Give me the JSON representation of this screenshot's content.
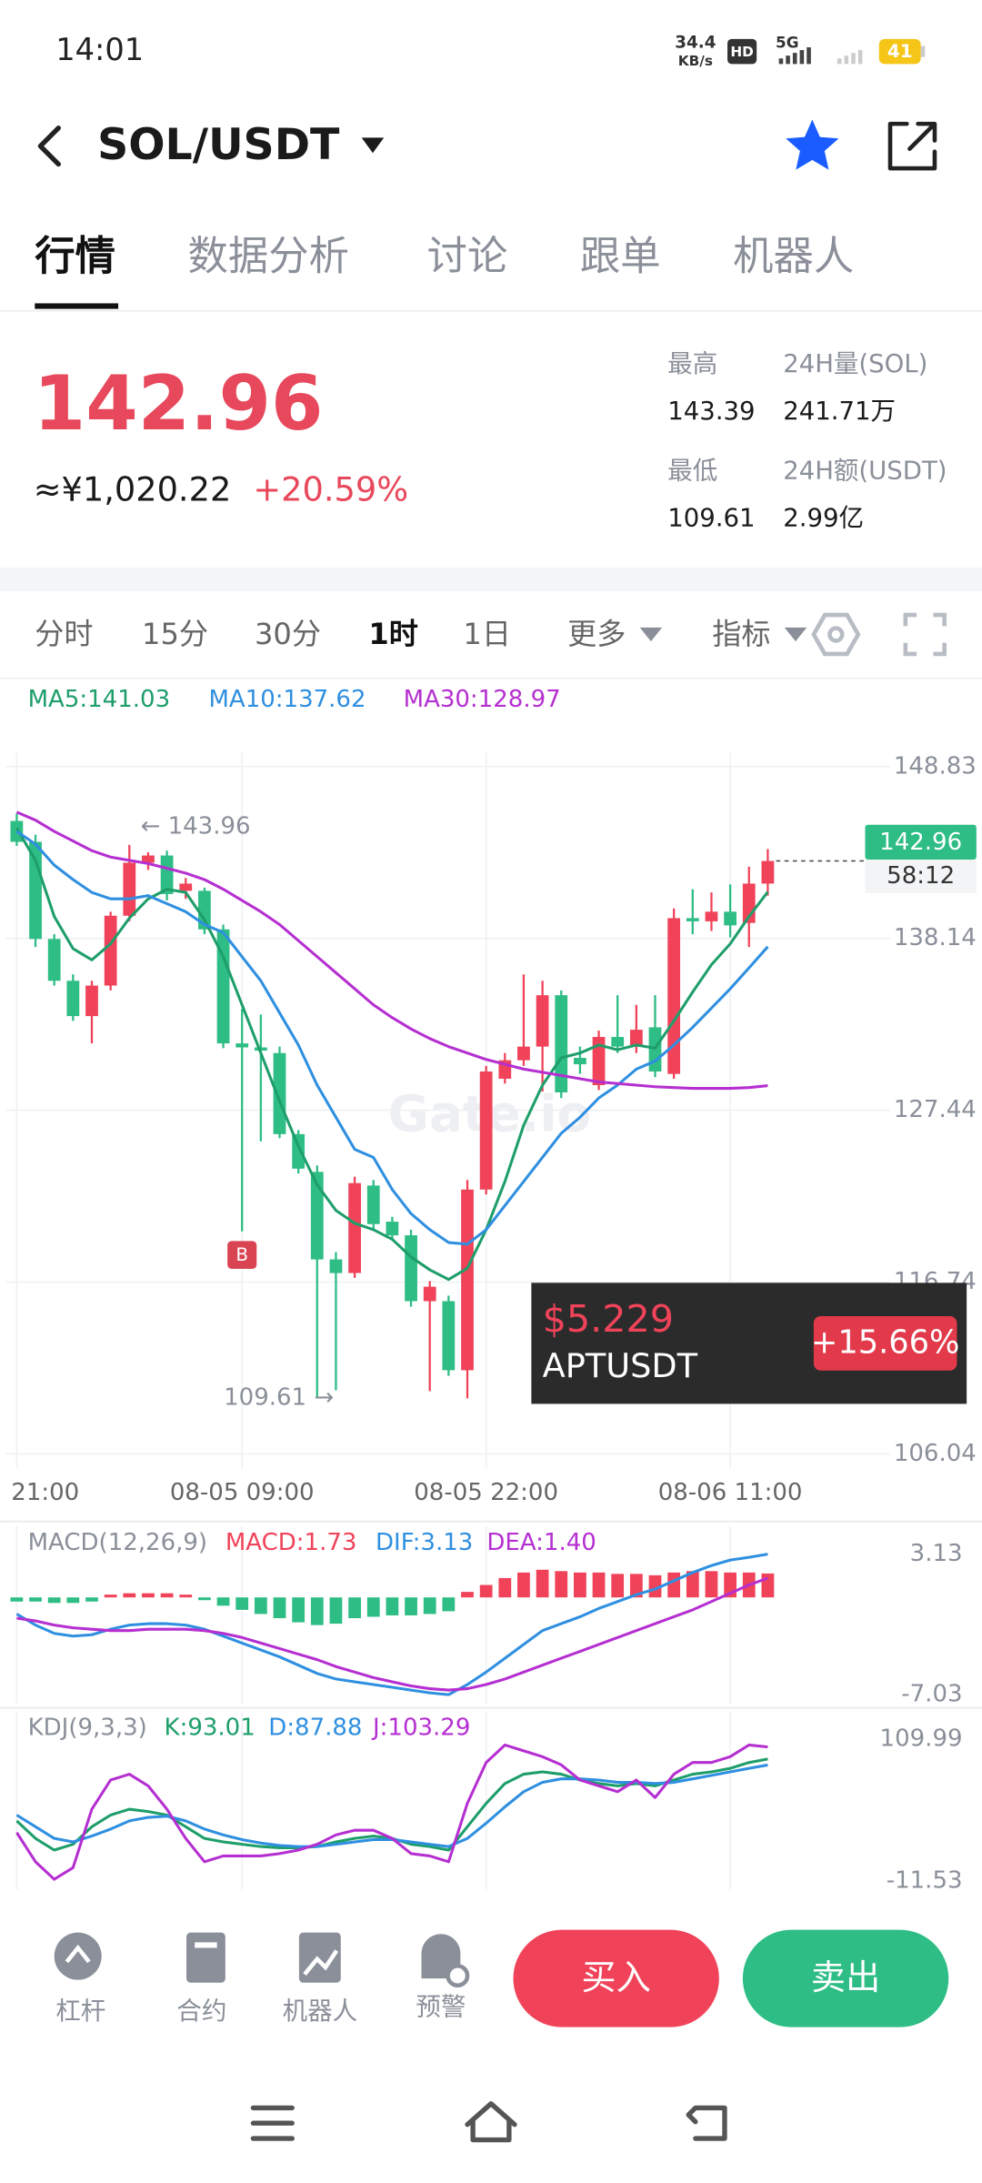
{
  "status_bar": {
    "time": "14:01",
    "net_speed": "34.4",
    "net_unit": "KB/s",
    "hd": "HD",
    "signal": "5G",
    "battery": "41"
  },
  "header": {
    "pair": "SOL/USDT"
  },
  "tabs": [
    "行情",
    "数据分析",
    "讨论",
    "跟单",
    "机器人"
  ],
  "ticker": {
    "price": "142.96",
    "cny": "≈¥1,020.22",
    "change": "+20.59%",
    "stats": [
      {
        "label": "最高",
        "value": "143.39"
      },
      {
        "label": "24H量(SOL)",
        "value": "241.71万"
      },
      {
        "label": "最低",
        "value": "109.61"
      },
      {
        "label": "24H额(USDT)",
        "value": "2.99亿"
      }
    ]
  },
  "intervals": [
    "分时",
    "15分",
    "30分",
    "1时",
    "1日",
    "更多",
    "指标"
  ],
  "chart_data": [
    {
      "type": "candlestick",
      "categories": [
        "21:00",
        null,
        null,
        null,
        null,
        null,
        null,
        null,
        null,
        null,
        null,
        null,
        "08-05 09:00",
        null,
        null,
        null,
        null,
        null,
        null,
        null,
        null,
        null,
        null,
        null,
        null,
        "08-05 22:00",
        null,
        null,
        null,
        null,
        null,
        null,
        null,
        null,
        null,
        null,
        null,
        null,
        "08-06 11:00",
        null,
        null
      ],
      "open": [
        145.45,
        144.15,
        138.1,
        135.5,
        133.3,
        135.2,
        139.55,
        142.85,
        143.3,
        141.1,
        141.1,
        138.7,
        131.6,
        131.35,
        131.0,
        125.95,
        123.6,
        118.15,
        117.3,
        122.75,
        120.5,
        119.65,
        115.55,
        115.55,
        111.25,
        122.5,
        129.4,
        130.55,
        131.4,
        134.6,
        130.7,
        129.0,
        132.0,
        131.4,
        132.6,
        129.7,
        139.4,
        139.2,
        139.8,
        139.1,
        141.55
      ],
      "high": [
        145.9,
        144.6,
        138.4,
        135.9,
        135.5,
        139.8,
        143.96,
        143.5,
        143.6,
        141.9,
        141.3,
        139.0,
        133.75,
        133.4,
        131.4,
        126.2,
        124.0,
        118.6,
        123.3,
        123.1,
        120.8,
        120.0,
        116.8,
        115.9,
        123.1,
        130.2,
        131.0,
        135.9,
        135.5,
        134.9,
        131.4,
        132.4,
        134.6,
        134.0,
        134.6,
        140.0,
        141.2,
        141.0,
        141.5,
        142.6,
        143.7
      ],
      "low": [
        143.9,
        137.6,
        135.2,
        133.0,
        131.6,
        134.9,
        139.2,
        142.4,
        140.5,
        140.6,
        138.4,
        131.3,
        119.9,
        125.5,
        125.7,
        123.5,
        109.61,
        110.0,
        117.0,
        120.0,
        119.4,
        115.2,
        109.95,
        110.9,
        109.5,
        122.2,
        129.1,
        130.2,
        128.6,
        128.2,
        129.7,
        128.7,
        131.0,
        131.0,
        129.5,
        129.4,
        138.4,
        138.6,
        138.2,
        137.6,
        140.8
      ],
      "close": [
        144.15,
        138.1,
        135.5,
        133.3,
        135.2,
        139.55,
        142.85,
        143.3,
        140.9,
        141.55,
        138.7,
        131.6,
        131.35,
        131.15,
        125.95,
        123.8,
        118.15,
        117.3,
        122.9,
        120.35,
        119.65,
        115.55,
        116.45,
        111.25,
        122.5,
        129.85,
        130.55,
        131.4,
        134.6,
        128.55,
        130.3,
        132.0,
        131.4,
        132.45,
        129.85,
        139.4,
        139.2,
        139.8,
        138.95,
        141.55,
        142.96
      ],
      "up_color": "#f0435a",
      "down_color": "#2ebd85",
      "series": [
        {
          "name": "MA5:141.03",
          "color": "#1e9e6a",
          "values": [
            145.0,
            143.0,
            139.5,
            137.5,
            136.8,
            137.8,
            139.4,
            140.6,
            141.2,
            141.0,
            139.3,
            137.0,
            134.0,
            131.0,
            128.0,
            125.2,
            122.8,
            121.2,
            120.4,
            120.0,
            119.4,
            118.3,
            117.5,
            116.9,
            117.6,
            120.0,
            123.0,
            126.5,
            129.0,
            130.7,
            131.0,
            131.5,
            131.2,
            131.5,
            131.3,
            133.0,
            134.8,
            136.5,
            137.8,
            139.5,
            141.03
          ]
        },
        {
          "name": "MA10:137.62",
          "color": "#2f8fe0",
          "values": [
            144.8,
            144.0,
            142.7,
            141.8,
            141.0,
            140.6,
            140.6,
            140.8,
            140.3,
            139.8,
            139.0,
            138.5,
            137.0,
            135.5,
            133.5,
            131.5,
            129.0,
            127.0,
            125.0,
            124.5,
            122.5,
            121.0,
            120.0,
            119.2,
            119.1,
            120.0,
            121.5,
            123.0,
            124.5,
            126.0,
            127.0,
            128.2,
            129.0,
            130.0,
            130.5,
            131.5,
            132.6,
            133.8,
            135.0,
            136.3,
            137.62
          ]
        },
        {
          "name": "MA30:128.97",
          "color": "#b52fd1",
          "values": [
            146.0,
            145.5,
            144.8,
            144.2,
            143.6,
            143.2,
            143.0,
            142.8,
            142.5,
            142.2,
            141.8,
            141.2,
            140.5,
            139.8,
            139.0,
            138.0,
            137.0,
            136.0,
            135.0,
            134.0,
            133.2,
            132.5,
            131.9,
            131.4,
            131.0,
            130.6,
            130.3,
            130.0,
            129.8,
            129.6,
            129.4,
            129.2,
            129.1,
            129.0,
            128.9,
            128.85,
            128.8,
            128.8,
            128.8,
            128.85,
            128.97
          ]
        }
      ],
      "ylim": [
        105.17,
        149.7
      ],
      "yticks": [
        148.83,
        138.14,
        127.44,
        116.74,
        106.04
      ],
      "grid": true,
      "last_price": {
        "value": 142.96,
        "countdown": "58:12"
      },
      "max_label": {
        "value": 143.96,
        "label": "← 143.96"
      },
      "min_label": {
        "value": 109.61,
        "label": "109.61 →"
      },
      "buy_marker": "B",
      "watermark": "Gate.io"
    },
    {
      "type": "line",
      "title": "MACD(12,26,9)",
      "series": [
        {
          "name": "MACD:1.73",
          "type": "bar",
          "color": "#f0435a",
          "negative_color": "#2ebd85",
          "values": [
            -0.3,
            -0.3,
            -0.4,
            -0.4,
            -0.3,
            0.2,
            0.3,
            0.3,
            0.3,
            0.2,
            -0.2,
            -0.6,
            -0.9,
            -1.2,
            -1.5,
            -1.8,
            -2.0,
            -1.9,
            -1.5,
            -1.4,
            -1.3,
            -1.3,
            -1.2,
            -1.0,
            0.4,
            0.9,
            1.4,
            1.8,
            2.0,
            1.9,
            1.8,
            1.8,
            1.7,
            1.7,
            1.6,
            1.8,
            1.9,
            1.9,
            1.8,
            1.8,
            1.73
          ]
        },
        {
          "name": "DIF:3.13",
          "color": "#2f8fe0",
          "values": [
            -1.2,
            -2.0,
            -2.6,
            -2.8,
            -2.7,
            -2.3,
            -2.0,
            -1.9,
            -1.9,
            -2.0,
            -2.3,
            -2.8,
            -3.3,
            -3.8,
            -4.3,
            -4.9,
            -5.5,
            -5.9,
            -6.1,
            -6.3,
            -6.5,
            -6.7,
            -6.9,
            -7.03,
            -6.3,
            -5.4,
            -4.4,
            -3.4,
            -2.4,
            -1.9,
            -1.4,
            -0.8,
            -0.3,
            0.2,
            0.6,
            1.2,
            1.8,
            2.3,
            2.7,
            2.9,
            3.13
          ]
        },
        {
          "name": "DEA:1.40",
          "color": "#b52fd1",
          "values": [
            -1.5,
            -1.7,
            -2.0,
            -2.2,
            -2.3,
            -2.4,
            -2.4,
            -2.3,
            -2.3,
            -2.3,
            -2.4,
            -2.6,
            -2.9,
            -3.3,
            -3.7,
            -4.1,
            -4.5,
            -5.0,
            -5.4,
            -5.8,
            -6.1,
            -6.4,
            -6.6,
            -6.7,
            -6.6,
            -6.3,
            -5.9,
            -5.4,
            -4.9,
            -4.4,
            -3.9,
            -3.4,
            -2.9,
            -2.4,
            -1.9,
            -1.4,
            -0.9,
            -0.3,
            0.3,
            0.9,
            1.4
          ]
        }
      ],
      "ylim": [
        -7.03,
        3.13
      ],
      "yticks": [
        3.13,
        -7.03
      ]
    },
    {
      "type": "line",
      "title": "KDJ(9,3,3)",
      "series": [
        {
          "name": "K:93.01",
          "color": "#1e9e6a",
          "values": [
            40,
            25,
            15,
            20,
            35,
            45,
            50,
            48,
            45,
            35,
            25,
            22,
            20,
            18,
            17,
            17,
            18,
            22,
            25,
            27,
            25,
            20,
            18,
            15,
            35,
            55,
            72,
            80,
            82,
            80,
            75,
            72,
            70,
            72,
            70,
            75,
            80,
            82,
            85,
            90,
            93.01
          ]
        },
        {
          "name": "D:87.88",
          "color": "#2f8fe0",
          "values": [
            45,
            35,
            25,
            22,
            27,
            33,
            40,
            43,
            44,
            40,
            33,
            28,
            24,
            21,
            19,
            18,
            18,
            20,
            22,
            24,
            24,
            22,
            20,
            18,
            25,
            38,
            52,
            65,
            73,
            76,
            76,
            75,
            73,
            73,
            72,
            73,
            76,
            79,
            82,
            85,
            87.88
          ]
        },
        {
          "name": "J:103.29",
          "color": "#b52fd1",
          "values": [
            30,
            5,
            -10,
            0,
            50,
            75,
            80,
            70,
            50,
            25,
            5,
            10,
            10,
            10,
            12,
            15,
            20,
            28,
            32,
            32,
            25,
            12,
            10,
            5,
            55,
            90,
            105,
            100,
            95,
            88,
            75,
            70,
            65,
            75,
            60,
            80,
            90,
            90,
            95,
            105,
            103.29
          ]
        }
      ],
      "ylim": [
        -11.53,
        109.99
      ],
      "yticks": [
        109.99,
        -11.53
      ]
    }
  ],
  "ad": {
    "price": "$5.229",
    "symbol": "APTUSDT",
    "change": "+15.66%"
  },
  "toolbar": {
    "items": [
      "杠杆",
      "合约",
      "机器人",
      "预警"
    ],
    "buy": "买入",
    "sell": "卖出"
  }
}
